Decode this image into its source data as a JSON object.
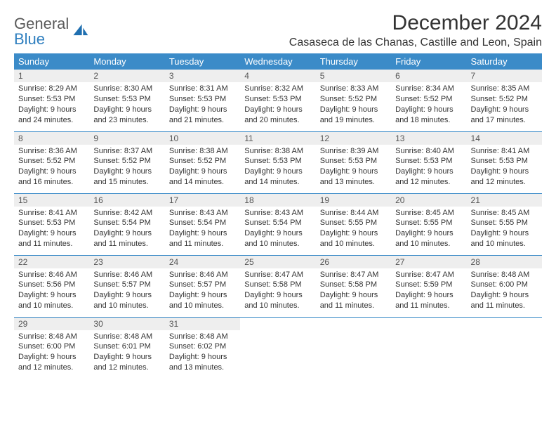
{
  "logo": {
    "word1": "General",
    "word2": "Blue"
  },
  "title": "December 2024",
  "location": "Casaseca de las Chanas, Castille and Leon, Spain",
  "colors": {
    "header_bg": "#3b8bc8",
    "header_text": "#ffffff",
    "daynum_bg": "#eeeeee",
    "row_border": "#3b8bc8",
    "logo_gray": "#5a5a5a",
    "logo_blue": "#2f7fbf",
    "body_text": "#333333",
    "page_bg": "#ffffff"
  },
  "weekdays": [
    "Sunday",
    "Monday",
    "Tuesday",
    "Wednesday",
    "Thursday",
    "Friday",
    "Saturday"
  ],
  "weeks": [
    [
      {
        "n": "1",
        "sunrise": "Sunrise: 8:29 AM",
        "sunset": "Sunset: 5:53 PM",
        "day": "Daylight: 9 hours and 24 minutes."
      },
      {
        "n": "2",
        "sunrise": "Sunrise: 8:30 AM",
        "sunset": "Sunset: 5:53 PM",
        "day": "Daylight: 9 hours and 23 minutes."
      },
      {
        "n": "3",
        "sunrise": "Sunrise: 8:31 AM",
        "sunset": "Sunset: 5:53 PM",
        "day": "Daylight: 9 hours and 21 minutes."
      },
      {
        "n": "4",
        "sunrise": "Sunrise: 8:32 AM",
        "sunset": "Sunset: 5:53 PM",
        "day": "Daylight: 9 hours and 20 minutes."
      },
      {
        "n": "5",
        "sunrise": "Sunrise: 8:33 AM",
        "sunset": "Sunset: 5:52 PM",
        "day": "Daylight: 9 hours and 19 minutes."
      },
      {
        "n": "6",
        "sunrise": "Sunrise: 8:34 AM",
        "sunset": "Sunset: 5:52 PM",
        "day": "Daylight: 9 hours and 18 minutes."
      },
      {
        "n": "7",
        "sunrise": "Sunrise: 8:35 AM",
        "sunset": "Sunset: 5:52 PM",
        "day": "Daylight: 9 hours and 17 minutes."
      }
    ],
    [
      {
        "n": "8",
        "sunrise": "Sunrise: 8:36 AM",
        "sunset": "Sunset: 5:52 PM",
        "day": "Daylight: 9 hours and 16 minutes."
      },
      {
        "n": "9",
        "sunrise": "Sunrise: 8:37 AM",
        "sunset": "Sunset: 5:52 PM",
        "day": "Daylight: 9 hours and 15 minutes."
      },
      {
        "n": "10",
        "sunrise": "Sunrise: 8:38 AM",
        "sunset": "Sunset: 5:52 PM",
        "day": "Daylight: 9 hours and 14 minutes."
      },
      {
        "n": "11",
        "sunrise": "Sunrise: 8:38 AM",
        "sunset": "Sunset: 5:53 PM",
        "day": "Daylight: 9 hours and 14 minutes."
      },
      {
        "n": "12",
        "sunrise": "Sunrise: 8:39 AM",
        "sunset": "Sunset: 5:53 PM",
        "day": "Daylight: 9 hours and 13 minutes."
      },
      {
        "n": "13",
        "sunrise": "Sunrise: 8:40 AM",
        "sunset": "Sunset: 5:53 PM",
        "day": "Daylight: 9 hours and 12 minutes."
      },
      {
        "n": "14",
        "sunrise": "Sunrise: 8:41 AM",
        "sunset": "Sunset: 5:53 PM",
        "day": "Daylight: 9 hours and 12 minutes."
      }
    ],
    [
      {
        "n": "15",
        "sunrise": "Sunrise: 8:41 AM",
        "sunset": "Sunset: 5:53 PM",
        "day": "Daylight: 9 hours and 11 minutes."
      },
      {
        "n": "16",
        "sunrise": "Sunrise: 8:42 AM",
        "sunset": "Sunset: 5:54 PM",
        "day": "Daylight: 9 hours and 11 minutes."
      },
      {
        "n": "17",
        "sunrise": "Sunrise: 8:43 AM",
        "sunset": "Sunset: 5:54 PM",
        "day": "Daylight: 9 hours and 11 minutes."
      },
      {
        "n": "18",
        "sunrise": "Sunrise: 8:43 AM",
        "sunset": "Sunset: 5:54 PM",
        "day": "Daylight: 9 hours and 10 minutes."
      },
      {
        "n": "19",
        "sunrise": "Sunrise: 8:44 AM",
        "sunset": "Sunset: 5:55 PM",
        "day": "Daylight: 9 hours and 10 minutes."
      },
      {
        "n": "20",
        "sunrise": "Sunrise: 8:45 AM",
        "sunset": "Sunset: 5:55 PM",
        "day": "Daylight: 9 hours and 10 minutes."
      },
      {
        "n": "21",
        "sunrise": "Sunrise: 8:45 AM",
        "sunset": "Sunset: 5:55 PM",
        "day": "Daylight: 9 hours and 10 minutes."
      }
    ],
    [
      {
        "n": "22",
        "sunrise": "Sunrise: 8:46 AM",
        "sunset": "Sunset: 5:56 PM",
        "day": "Daylight: 9 hours and 10 minutes."
      },
      {
        "n": "23",
        "sunrise": "Sunrise: 8:46 AM",
        "sunset": "Sunset: 5:57 PM",
        "day": "Daylight: 9 hours and 10 minutes."
      },
      {
        "n": "24",
        "sunrise": "Sunrise: 8:46 AM",
        "sunset": "Sunset: 5:57 PM",
        "day": "Daylight: 9 hours and 10 minutes."
      },
      {
        "n": "25",
        "sunrise": "Sunrise: 8:47 AM",
        "sunset": "Sunset: 5:58 PM",
        "day": "Daylight: 9 hours and 10 minutes."
      },
      {
        "n": "26",
        "sunrise": "Sunrise: 8:47 AM",
        "sunset": "Sunset: 5:58 PM",
        "day": "Daylight: 9 hours and 11 minutes."
      },
      {
        "n": "27",
        "sunrise": "Sunrise: 8:47 AM",
        "sunset": "Sunset: 5:59 PM",
        "day": "Daylight: 9 hours and 11 minutes."
      },
      {
        "n": "28",
        "sunrise": "Sunrise: 8:48 AM",
        "sunset": "Sunset: 6:00 PM",
        "day": "Daylight: 9 hours and 11 minutes."
      }
    ],
    [
      {
        "n": "29",
        "sunrise": "Sunrise: 8:48 AM",
        "sunset": "Sunset: 6:00 PM",
        "day": "Daylight: 9 hours and 12 minutes."
      },
      {
        "n": "30",
        "sunrise": "Sunrise: 8:48 AM",
        "sunset": "Sunset: 6:01 PM",
        "day": "Daylight: 9 hours and 12 minutes."
      },
      {
        "n": "31",
        "sunrise": "Sunrise: 8:48 AM",
        "sunset": "Sunset: 6:02 PM",
        "day": "Daylight: 9 hours and 13 minutes."
      },
      null,
      null,
      null,
      null
    ]
  ]
}
